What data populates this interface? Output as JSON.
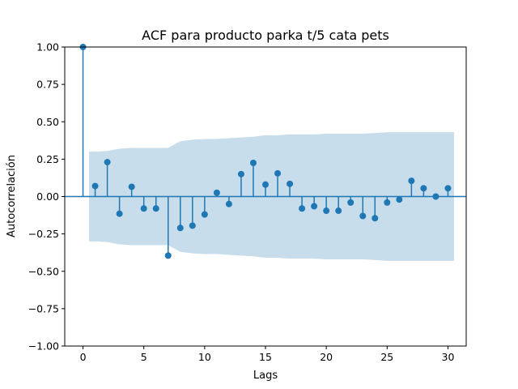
{
  "chart_data": {
    "type": "stem",
    "title": "ACF para producto parka t/5 cata pets",
    "xlabel": "Lags",
    "ylabel": "Autocorrelación",
    "xlim": [
      -1.5,
      31.5
    ],
    "ylim": [
      -1.0,
      1.0
    ],
    "xticks": [
      0,
      5,
      10,
      15,
      20,
      25,
      30
    ],
    "xtick_labels": [
      "0",
      "5",
      "10",
      "15",
      "20",
      "25",
      "30"
    ],
    "yticks": [
      -1.0,
      -0.75,
      -0.5,
      -0.25,
      0.0,
      0.25,
      0.5,
      0.75,
      1.0
    ],
    "ytick_labels": [
      "−1.00",
      "−0.75",
      "−0.50",
      "−0.25",
      "0.00",
      "0.25",
      "0.50",
      "0.75",
      "1.00"
    ],
    "grid": false,
    "lags": [
      0,
      1,
      2,
      3,
      4,
      5,
      6,
      7,
      8,
      9,
      10,
      11,
      12,
      13,
      14,
      15,
      16,
      17,
      18,
      19,
      20,
      21,
      22,
      23,
      24,
      25,
      26,
      27,
      28,
      29,
      30
    ],
    "values": [
      1.0,
      0.07,
      0.23,
      -0.115,
      0.065,
      -0.08,
      -0.08,
      -0.395,
      -0.21,
      -0.195,
      -0.12,
      0.025,
      -0.05,
      0.15,
      0.225,
      0.08,
      0.155,
      0.085,
      -0.08,
      -0.065,
      -0.095,
      -0.095,
      -0.04,
      -0.13,
      -0.145,
      -0.04,
      -0.02,
      0.105,
      0.055,
      0.0,
      0.055
    ],
    "confidence_band": {
      "lags": [
        0.5,
        1,
        2,
        3,
        4,
        5,
        6,
        7,
        8,
        9,
        10,
        11,
        12,
        13,
        14,
        15,
        16,
        17,
        18,
        19,
        20,
        21,
        22,
        23,
        24,
        25,
        26,
        27,
        28,
        29,
        30.5
      ],
      "upper": [
        0.3,
        0.3,
        0.305,
        0.32,
        0.325,
        0.325,
        0.325,
        0.325,
        0.37,
        0.38,
        0.385,
        0.385,
        0.39,
        0.395,
        0.4,
        0.41,
        0.41,
        0.415,
        0.415,
        0.415,
        0.42,
        0.42,
        0.42,
        0.42,
        0.425,
        0.43,
        0.43,
        0.43,
        0.43,
        0.43,
        0.43
      ]
    },
    "colors": {
      "series": "#1f77b4",
      "band": "#1f77b4",
      "band_opacity": 0.25
    }
  }
}
